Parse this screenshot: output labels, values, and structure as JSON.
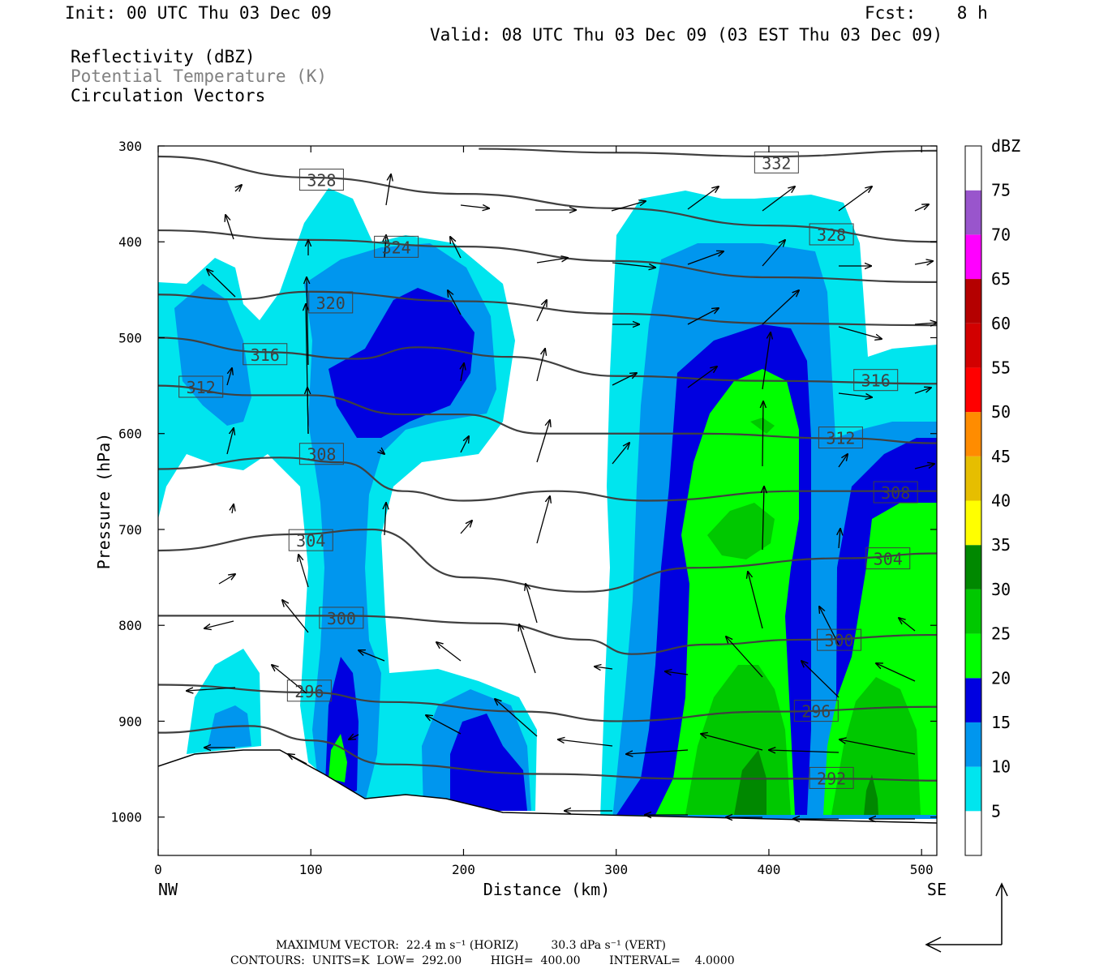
{
  "header": {
    "init": "Init: 00 UTC Thu 03 Dec 09",
    "fcst": "Fcst:    8 h",
    "valid": "Valid: 08 UTC Thu 03 Dec 09 (03 EST Thu 03 Dec 09)",
    "fields": [
      {
        "label": "Reflectivity (dBZ)",
        "color": "#000000"
      },
      {
        "label": "Potential Temperature (K)",
        "color": "#808080"
      },
      {
        "label": "Circulation Vectors",
        "color": "#000000"
      }
    ]
  },
  "footer": {
    "max_vector": "MAXIMUM VECTOR:  22.4 m s⁻¹ (HORIZ)         30.3 dPa s⁻¹ (VERT)",
    "contours": "CONTOURS:  UNITS=K  LOW=  292.00        HIGH=  400.00        INTERVAL=    4.0000"
  },
  "chart_data": {
    "type": "cross-section",
    "xlabel": "Distance (km)",
    "ylabel": "Pressure (hPa)",
    "x_end_labels": {
      "left": "NW",
      "right": "SE"
    },
    "xlim": [
      0,
      510
    ],
    "ylim": [
      300,
      1040
    ],
    "xticks": [
      0,
      100,
      200,
      300,
      400,
      500
    ],
    "yticks": [
      300,
      400,
      500,
      600,
      700,
      800,
      900,
      1000
    ],
    "colorbar": {
      "unit": "dBZ",
      "levels": [
        5,
        10,
        15,
        20,
        25,
        30,
        35,
        40,
        45,
        50,
        55,
        60,
        65,
        70,
        75
      ],
      "colors": [
        "#ffffff",
        "#00e5ee",
        "#0096ee",
        "#0000e0",
        "#00ff00",
        "#00c800",
        "#008800",
        "#ffff00",
        "#e6be00",
        "#ff8c00",
        "#ff0000",
        "#d20000",
        "#b40000",
        "#ff00ff",
        "#9955cc",
        "#ffffff"
      ]
    },
    "theta_contours": [
      {
        "value": 332,
        "label": "332",
        "points": [
          [
            210,
            303
          ],
          [
            300,
            307
          ],
          [
            400,
            311
          ],
          [
            510,
            305
          ]
        ],
        "label_at": [
          405,
          318
        ]
      },
      {
        "value": 328,
        "label": "328",
        "points": [
          [
            0,
            311
          ],
          [
            100,
            333
          ],
          [
            200,
            350
          ],
          [
            300,
            365
          ],
          [
            400,
            383
          ],
          [
            510,
            400
          ]
        ],
        "label_at": [
          107,
          336
        ]
      },
      {
        "value": 328,
        "label": "328",
        "points": [],
        "label_at": [
          441,
          393
        ]
      },
      {
        "value": 324,
        "label": "324",
        "points": [
          [
            0,
            388
          ],
          [
            100,
            398
          ],
          [
            200,
            405
          ],
          [
            300,
            420
          ],
          [
            400,
            437
          ],
          [
            510,
            442
          ]
        ],
        "label_at": [
          156,
          406
        ]
      },
      {
        "value": 320,
        "label": "320",
        "points": [
          [
            0,
            455
          ],
          [
            50,
            460
          ],
          [
            100,
            452
          ],
          [
            200,
            462
          ],
          [
            300,
            475
          ],
          [
            400,
            485
          ],
          [
            510,
            487
          ]
        ],
        "label_at": [
          113,
          464
        ]
      },
      {
        "value": 316,
        "label": "316",
        "points": [
          [
            0,
            500
          ],
          [
            70,
            515
          ],
          [
            130,
            522
          ],
          [
            170,
            510
          ],
          [
            230,
            520
          ],
          [
            300,
            540
          ],
          [
            400,
            545
          ],
          [
            510,
            548
          ]
        ],
        "label_at": [
          70,
          518
        ]
      },
      {
        "value": 316,
        "label": "316",
        "points": [],
        "label_at": [
          470,
          545
        ]
      },
      {
        "value": 312,
        "label": "312",
        "points": [
          [
            0,
            550
          ],
          [
            60,
            560
          ],
          [
            100,
            560
          ],
          [
            160,
            580
          ],
          [
            200,
            580
          ],
          [
            250,
            600
          ],
          [
            350,
            600
          ],
          [
            450,
            605
          ],
          [
            510,
            610
          ]
        ],
        "label_at": [
          28,
          552
        ]
      },
      {
        "value": 312,
        "label": "312",
        "points": [],
        "label_at": [
          447,
          605
        ]
      },
      {
        "value": 308,
        "label": "308",
        "points": [
          [
            0,
            637
          ],
          [
            80,
            625
          ],
          [
            120,
            630
          ],
          [
            160,
            660
          ],
          [
            200,
            670
          ],
          [
            260,
            660
          ],
          [
            320,
            670
          ],
          [
            420,
            660
          ],
          [
            510,
            660
          ]
        ],
        "label_at": [
          107,
          622
        ]
      },
      {
        "value": 308,
        "label": "308",
        "points": [],
        "label_at": [
          483,
          662
        ]
      },
      {
        "value": 304,
        "label": "304",
        "points": [
          [
            0,
            722
          ],
          [
            90,
            705
          ],
          [
            140,
            700
          ],
          [
            200,
            750
          ],
          [
            280,
            765
          ],
          [
            350,
            740
          ],
          [
            450,
            730
          ],
          [
            510,
            725
          ]
        ],
        "label_at": [
          100,
          712
        ]
      },
      {
        "value": 304,
        "label": "304",
        "points": [],
        "label_at": [
          478,
          731
        ]
      },
      {
        "value": 300,
        "label": "300",
        "points": [
          [
            0,
            790
          ],
          [
            120,
            790
          ],
          [
            220,
            798
          ],
          [
            280,
            815
          ],
          [
            310,
            830
          ],
          [
            360,
            820
          ],
          [
            420,
            815
          ],
          [
            510,
            810
          ]
        ],
        "label_at": [
          120,
          793
        ]
      },
      {
        "value": 300,
        "label": "300",
        "points": [],
        "label_at": [
          446,
          816
        ]
      },
      {
        "value": 296,
        "label": "296",
        "points": [
          [
            0,
            862
          ],
          [
            100,
            870
          ],
          [
            150,
            880
          ],
          [
            240,
            890
          ],
          [
            300,
            900
          ],
          [
            400,
            890
          ],
          [
            510,
            885
          ]
        ],
        "label_at": [
          99,
          869
        ]
      },
      {
        "value": 296,
        "label": "296",
        "points": [],
        "label_at": [
          431,
          890
        ]
      },
      {
        "value": 292,
        "label": "292",
        "points": [
          [
            0,
            912
          ],
          [
            60,
            905
          ],
          [
            100,
            920
          ],
          [
            150,
            945
          ],
          [
            250,
            955
          ],
          [
            350,
            960
          ],
          [
            450,
            960
          ],
          [
            510,
            962
          ]
        ],
        "label_at": [
          441,
          960
        ]
      }
    ]
  }
}
